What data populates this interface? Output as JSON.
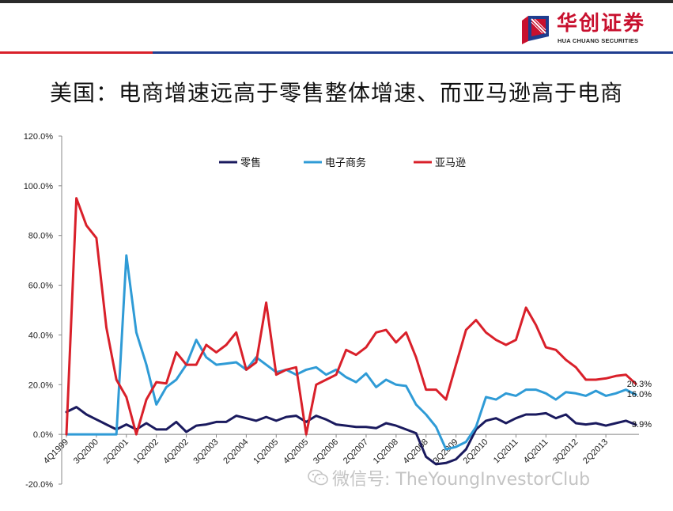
{
  "brand": {
    "name": "华创证券",
    "subname": "HUA CHUANG SECURITIES",
    "red": "#c8102e",
    "blue": "#1f3d8f"
  },
  "page": {
    "title": "美国：电商增速远高于零售整体增速、而亚马逊高于电商"
  },
  "watermark": {
    "text": "微信号: TheYoungInvestorClub",
    "icon": "wechat-icon"
  },
  "chart_data": {
    "type": "line",
    "title": "",
    "xlabel": "",
    "ylabel": "",
    "ylim": [
      -0.2,
      1.2
    ],
    "y_ticks": [
      -0.2,
      0.0,
      0.2,
      0.4,
      0.6,
      0.8,
      1.0,
      1.2
    ],
    "y_tick_labels": [
      "-20.0%",
      "0.0%",
      "20.0%",
      "40.0%",
      "60.0%",
      "80.0%",
      "100.0%",
      "120.0%"
    ],
    "grid": false,
    "legend_position": "top",
    "x_tick_labels": [
      "4Q1999",
      "3Q2000",
      "2Q2001",
      "1Q2002",
      "4Q2002",
      "3Q2003",
      "2Q2004",
      "1Q2005",
      "4Q2005",
      "3Q2006",
      "2Q2007",
      "1Q2008",
      "4Q2008",
      "3Q2009",
      "2Q2010",
      "1Q2011",
      "4Q2011",
      "3Q2012",
      "2Q2013"
    ],
    "x_tick_every": 3,
    "series": [
      {
        "name": "零售",
        "color": "#1a1a5e",
        "values": [
          0.09,
          0.11,
          0.08,
          0.06,
          0.04,
          0.02,
          0.04,
          0.02,
          0.045,
          0.02,
          0.02,
          0.05,
          0.01,
          0.035,
          0.04,
          0.05,
          0.05,
          0.075,
          0.065,
          0.055,
          0.07,
          0.055,
          0.07,
          0.075,
          0.05,
          0.075,
          0.06,
          0.04,
          0.035,
          0.03,
          0.03,
          0.025,
          0.045,
          0.035,
          0.02,
          0.005,
          -0.09,
          -0.12,
          -0.115,
          -0.1,
          -0.06,
          0.02,
          0.055,
          0.065,
          0.045,
          0.065,
          0.08,
          0.08,
          0.085,
          0.065,
          0.08,
          0.045,
          0.04,
          0.045,
          0.035,
          0.045,
          0.055,
          0.039
        ]
      },
      {
        "name": "电子商务",
        "color": "#2f9bd6",
        "values": [
          0.0,
          0.0,
          0.0,
          0.0,
          0.0,
          0.0,
          0.72,
          0.41,
          0.28,
          0.12,
          0.19,
          0.22,
          0.28,
          0.38,
          0.31,
          0.28,
          0.285,
          0.29,
          0.26,
          0.31,
          0.28,
          0.25,
          0.26,
          0.24,
          0.26,
          0.27,
          0.24,
          0.26,
          0.23,
          0.21,
          0.245,
          0.19,
          0.22,
          0.2,
          0.195,
          0.12,
          0.08,
          0.03,
          -0.06,
          -0.05,
          -0.03,
          0.03,
          0.15,
          0.14,
          0.165,
          0.155,
          0.18,
          0.18,
          0.165,
          0.14,
          0.17,
          0.165,
          0.155,
          0.175,
          0.155,
          0.165,
          0.18,
          0.16
        ]
      },
      {
        "name": "亚马逊",
        "color": "#d9202a",
        "values": [
          0.0,
          0.95,
          0.84,
          0.79,
          0.43,
          0.22,
          0.15,
          0.0,
          0.14,
          0.21,
          0.205,
          0.33,
          0.28,
          0.28,
          0.36,
          0.33,
          0.36,
          0.41,
          0.26,
          0.29,
          0.53,
          0.24,
          0.26,
          0.27,
          0.0,
          0.2,
          0.22,
          0.24,
          0.34,
          0.32,
          0.35,
          0.41,
          0.42,
          0.37,
          0.41,
          0.31,
          0.18,
          0.18,
          0.14,
          0.28,
          0.42,
          0.46,
          0.41,
          0.38,
          0.36,
          0.38,
          0.51,
          0.44,
          0.35,
          0.34,
          0.3,
          0.27,
          0.22,
          0.22,
          0.225,
          0.235,
          0.24,
          0.203
        ]
      }
    ],
    "end_labels": [
      {
        "series": "亚马逊",
        "text": "20.3%"
      },
      {
        "series": "电子商务",
        "text": "16.0%"
      },
      {
        "series": "零售",
        "text": "3.9%"
      }
    ]
  }
}
